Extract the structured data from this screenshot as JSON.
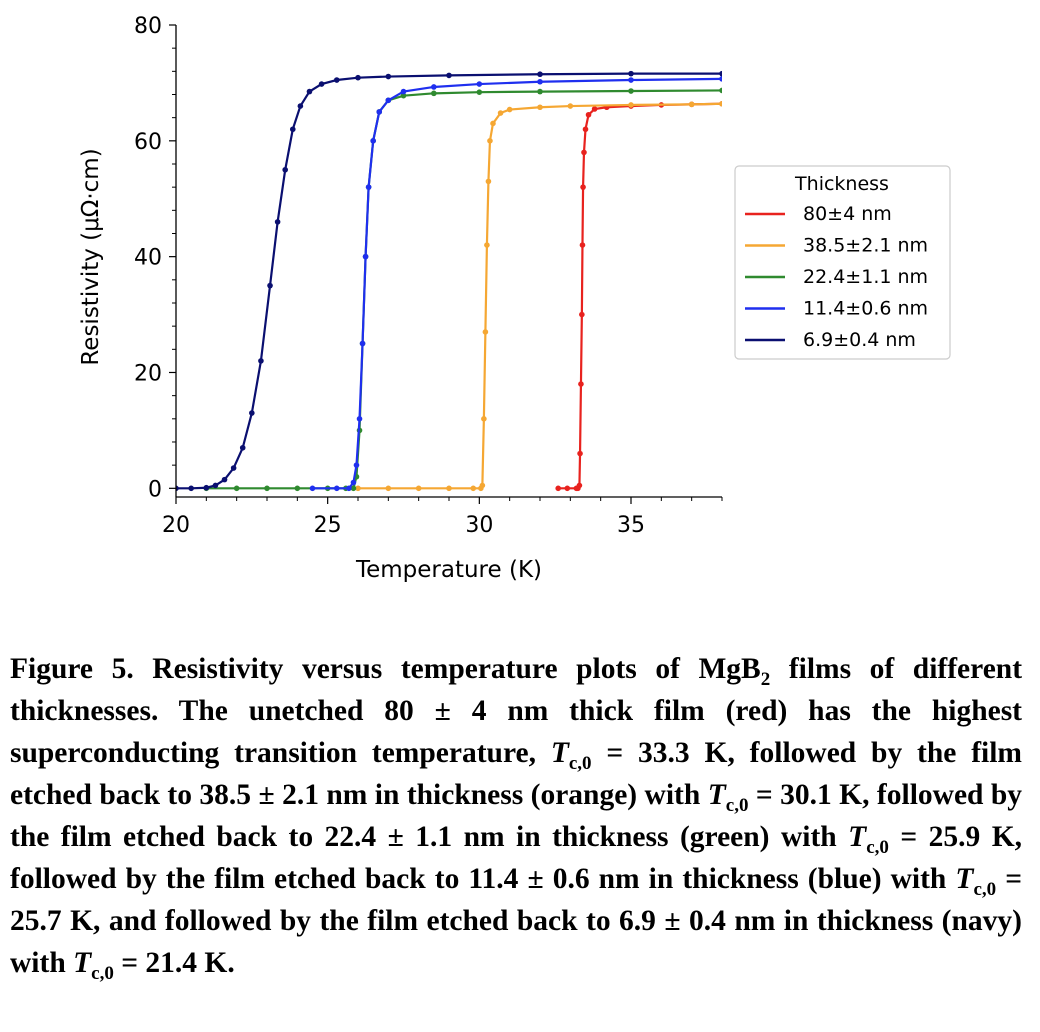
{
  "chart_data": {
    "type": "line",
    "xlabel": "Temperature (K)",
    "ylabel": "Resistivity (μΩ·cm)",
    "xlim": [
      20,
      38
    ],
    "ylim": [
      -1.5,
      80
    ],
    "xticks": [
      20,
      25,
      30,
      35
    ],
    "yticks": [
      0,
      20,
      40,
      60,
      80
    ],
    "legend": {
      "title": "Thickness",
      "placement": "center-right outside"
    },
    "series": [
      {
        "name": "80±4 nm",
        "color": "#e8221e",
        "points": [
          [
            32.6,
            0
          ],
          [
            32.9,
            0
          ],
          [
            33.2,
            0
          ],
          [
            33.25,
            0
          ],
          [
            33.3,
            0.5
          ],
          [
            33.32,
            6
          ],
          [
            33.35,
            18
          ],
          [
            33.38,
            30
          ],
          [
            33.4,
            42
          ],
          [
            33.42,
            52
          ],
          [
            33.45,
            58
          ],
          [
            33.5,
            62
          ],
          [
            33.6,
            64.5
          ],
          [
            33.8,
            65.5
          ],
          [
            34.2,
            65.8
          ],
          [
            35,
            66
          ],
          [
            36,
            66.2
          ],
          [
            37,
            66.3
          ],
          [
            38,
            66.4
          ]
        ]
      },
      {
        "name": "38.5±2.1 nm",
        "color": "#f5a733",
        "points": [
          [
            26,
            0
          ],
          [
            27,
            0
          ],
          [
            28,
            0
          ],
          [
            29,
            0
          ],
          [
            29.8,
            0
          ],
          [
            30.05,
            0
          ],
          [
            30.1,
            0.5
          ],
          [
            30.15,
            12
          ],
          [
            30.2,
            27
          ],
          [
            30.25,
            42
          ],
          [
            30.3,
            53
          ],
          [
            30.35,
            60
          ],
          [
            30.45,
            63
          ],
          [
            30.7,
            64.8
          ],
          [
            31,
            65.4
          ],
          [
            32,
            65.8
          ],
          [
            33,
            66
          ],
          [
            35,
            66.2
          ],
          [
            37,
            66.3
          ],
          [
            38,
            66.4
          ]
        ]
      },
      {
        "name": "22.4±1.1 nm",
        "color": "#2f8a2f",
        "points": [
          [
            21,
            0
          ],
          [
            22,
            0
          ],
          [
            23,
            0
          ],
          [
            24,
            0
          ],
          [
            25,
            0
          ],
          [
            25.6,
            0
          ],
          [
            25.85,
            0
          ],
          [
            25.95,
            2
          ],
          [
            26.05,
            10
          ],
          [
            26.15,
            25
          ],
          [
            26.25,
            40
          ],
          [
            26.35,
            52
          ],
          [
            26.5,
            60
          ],
          [
            26.7,
            65
          ],
          [
            27,
            67
          ],
          [
            27.5,
            67.8
          ],
          [
            28.5,
            68.2
          ],
          [
            30,
            68.4
          ],
          [
            32,
            68.5
          ],
          [
            35,
            68.6
          ],
          [
            38,
            68.7
          ]
        ]
      },
      {
        "name": "11.4±0.6 nm",
        "color": "#1f2fef",
        "points": [
          [
            24.5,
            0
          ],
          [
            25.3,
            0
          ],
          [
            25.7,
            0
          ],
          [
            25.85,
            1
          ],
          [
            25.95,
            4
          ],
          [
            26.05,
            12
          ],
          [
            26.15,
            25
          ],
          [
            26.25,
            40
          ],
          [
            26.35,
            52
          ],
          [
            26.5,
            60
          ],
          [
            26.7,
            65
          ],
          [
            27,
            67
          ],
          [
            27.5,
            68.5
          ],
          [
            28.5,
            69.3
          ],
          [
            30,
            69.8
          ],
          [
            32,
            70.2
          ],
          [
            35,
            70.5
          ],
          [
            38,
            70.7
          ]
        ]
      },
      {
        "name": "6.9±0.4 nm",
        "color": "#0a0f70",
        "points": [
          [
            20,
            0
          ],
          [
            20.5,
            0
          ],
          [
            21,
            0.1
          ],
          [
            21.3,
            0.5
          ],
          [
            21.6,
            1.5
          ],
          [
            21.9,
            3.5
          ],
          [
            22.2,
            7
          ],
          [
            22.5,
            13
          ],
          [
            22.8,
            22
          ],
          [
            23.1,
            35
          ],
          [
            23.35,
            46
          ],
          [
            23.6,
            55
          ],
          [
            23.85,
            62
          ],
          [
            24.1,
            66
          ],
          [
            24.4,
            68.5
          ],
          [
            24.8,
            69.8
          ],
          [
            25.3,
            70.5
          ],
          [
            26,
            70.9
          ],
          [
            27,
            71.1
          ],
          [
            29,
            71.3
          ],
          [
            32,
            71.5
          ],
          [
            35,
            71.6
          ],
          [
            38,
            71.6
          ]
        ]
      }
    ]
  },
  "caption": {
    "figure_label": "Figure 5.",
    "text_1": "Resistivity versus temperature plots of MgB",
    "sub_mg": "2",
    "text_2": "films of different thicknesses. The unetched 80 ± 4 nm thick film (red) has the highest superconducting transition temperature,",
    "tc_1": "T",
    "tc_1_sub": "c,0",
    "text_3": "= 33.3 K, followed by the film etched back to 38.5 ± 2.1 nm in thickness (orange) with",
    "tc_2": "T",
    "tc_2_sub": "c,0",
    "text_4": "= 30.1 K, followed by the film etched back to 22.4 ± 1.1 nm in thickness (green) with",
    "tc_3": "T",
    "tc_3_sub": "c,0",
    "text_5": "= 25.9 K, followed by the film etched back to 11.4 ± 0.6 nm in thickness (blue) with",
    "tc_4": "T",
    "tc_4_sub": "c,0",
    "text_6": "= 25.7 K, and followed by the film etched back to 6.9 ± 0.4 nm in thickness (navy) with",
    "tc_5": "T",
    "tc_5_sub": "c,0",
    "text_7": "= 21.4 K."
  }
}
